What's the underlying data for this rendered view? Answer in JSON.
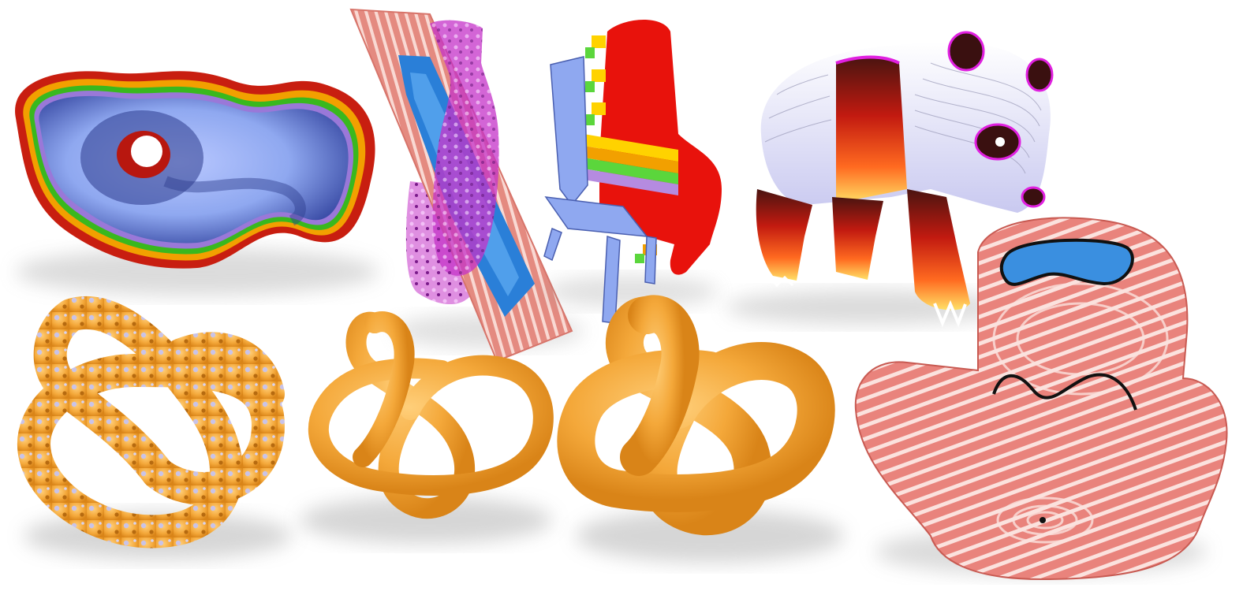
{
  "figure": {
    "background": "#ffffff",
    "panels": [
      {
        "id": "thickened-blob",
        "colors": [
          "#c81e10",
          "#f2a000",
          "#39b81e",
          "#9a78d8",
          "#8fa8f0"
        ]
      },
      {
        "id": "bottle-slice",
        "colors": [
          "#e48a80",
          "#2a7fd8",
          "#c433c8"
        ]
      },
      {
        "id": "chair-rainbow",
        "colors": [
          "#e8120c",
          "#ffd200",
          "#5bd63c",
          "#b58be0",
          "#8fa8f0"
        ]
      },
      {
        "id": "panda-contours",
        "colors": [
          "#ffffff",
          "#c21a10",
          "#ffd43a",
          "#e020e0"
        ]
      },
      {
        "id": "knot-noisy",
        "colors": [
          "#f4a83a"
        ]
      },
      {
        "id": "knot-thin",
        "colors": [
          "#f4a83a"
        ]
      },
      {
        "id": "knot-thick",
        "colors": [
          "#f4a83a"
        ]
      },
      {
        "id": "armchair-contours",
        "colors": [
          "#e9837c",
          "#ffffff",
          "#3a8fe0",
          "#111111"
        ]
      }
    ]
  }
}
